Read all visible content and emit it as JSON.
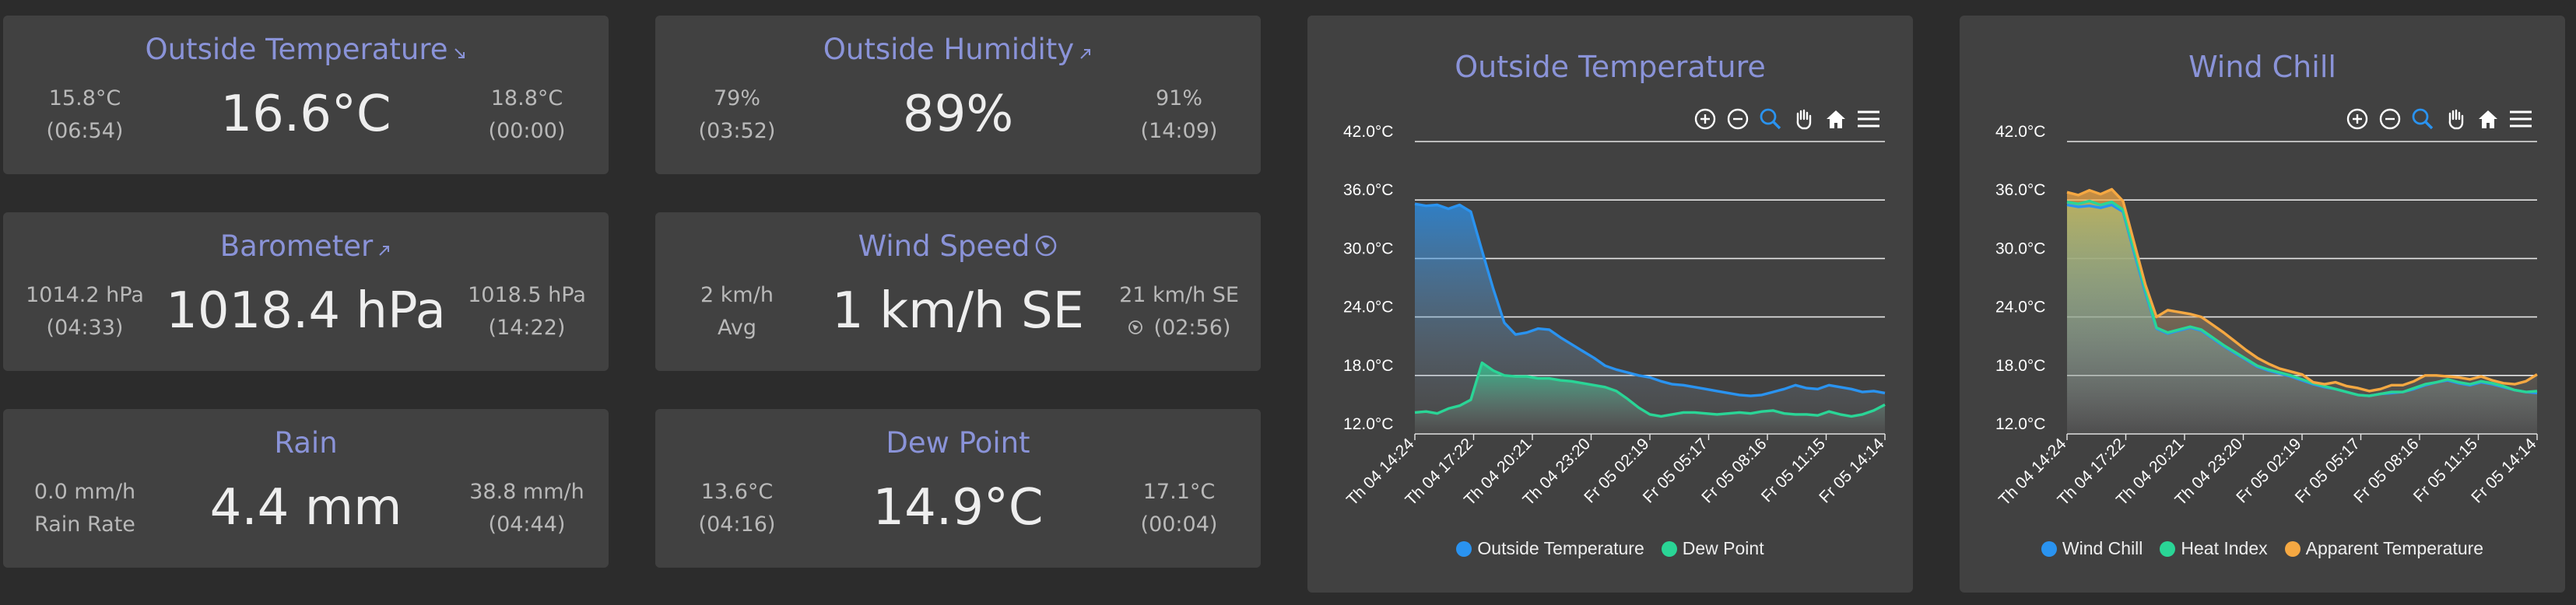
{
  "colors": {
    "title": "#8a93d8",
    "tile_bg": "#414141",
    "page_bg": "#2c2c2c",
    "blue": "#2a93f0",
    "green": "#2ad596",
    "orange": "#f5a842"
  },
  "tiles": {
    "outside_temperature": {
      "title": "Outside Temperature",
      "trend_icon": "trend-down-arrow-icon",
      "value": "16.6°C",
      "left_top": "15.8°C",
      "left_bottom": "(06:54)",
      "right_top": "18.8°C",
      "right_bottom": "(00:00)"
    },
    "outside_humidity": {
      "title": "Outside Humidity",
      "trend_icon": "trend-up-arrow-icon",
      "value": "89%",
      "left_top": "79%",
      "left_bottom": "(03:52)",
      "right_top": "91%",
      "right_bottom": "(14:09)"
    },
    "barometer": {
      "title": "Barometer",
      "trend_icon": "trend-up-arrow-icon",
      "value": "1018.4 hPa",
      "left_top": "1014.2 hPa",
      "left_bottom": "(04:33)",
      "right_top": "1018.5 hPa",
      "right_bottom": "(14:22)"
    },
    "wind_speed": {
      "title": "Wind Speed",
      "trend_icon": "wind-direction-compass-icon",
      "value": "1 km/h SE",
      "left_top": "2 km/h",
      "left_bottom": "Avg",
      "right_top": "21 km/h SE",
      "right_bottom": "(02:56)",
      "right_bottom_icon": "wind-direction-small-icon"
    },
    "rain": {
      "title": "Rain",
      "value": "4.4 mm",
      "left_top": "0.0 mm/h",
      "left_bottom": "Rain Rate",
      "right_top": "38.8 mm/h",
      "right_bottom": "(04:44)"
    },
    "dew_point": {
      "title": "Dew Point",
      "value": "14.9°C",
      "left_top": "13.6°C",
      "left_bottom": "(04:16)",
      "right_top": "17.1°C",
      "right_bottom": "(00:04)"
    }
  },
  "toolbar_icons": [
    "zoom-in-icon",
    "zoom-out-icon",
    "zoom-select-icon",
    "pan-hand-icon",
    "home-reset-icon",
    "menu-icon"
  ],
  "chart_data": [
    {
      "type": "area",
      "title": "Outside Temperature",
      "yticks": [
        "42.0°C",
        "36.0°C",
        "30.0°C",
        "24.0°C",
        "18.0°C",
        "12.0°C"
      ],
      "ylim": [
        12,
        42
      ],
      "ytick_values": [
        42,
        36,
        30,
        24,
        18,
        12
      ],
      "grid": true,
      "legend_position": "bottom",
      "xticks": [
        "Th 04 14:24",
        "Th 04 17:22",
        "Th 04 20:21",
        "Th 04 23:20",
        "Fr 05 02:19",
        "Fr 05 05:17",
        "Fr 05 08:16",
        "Fr 05 11:15",
        "Fr 05 14:14"
      ],
      "series": [
        {
          "name": "Outside Temperature",
          "color": "#2a93f0",
          "values": [
            35.6,
            35.4,
            35.5,
            35.1,
            35.5,
            34.8,
            30.8,
            26.9,
            23.4,
            22.2,
            22.4,
            22.8,
            22.7,
            21.9,
            21.2,
            20.5,
            19.8,
            19.0,
            18.6,
            18.3,
            18.0,
            17.8,
            17.4,
            17.1,
            17.0,
            16.8,
            16.6,
            16.4,
            16.2,
            16.0,
            15.9,
            16.0,
            16.3,
            16.6,
            17.0,
            16.7,
            16.6,
            17.0,
            16.8,
            16.6,
            16.3,
            16.4,
            16.2
          ]
        },
        {
          "name": "Dew Point",
          "color": "#2ad596",
          "values": [
            14.2,
            14.3,
            14.1,
            14.6,
            14.9,
            15.5,
            19.3,
            18.5,
            18.0,
            17.9,
            17.9,
            17.7,
            17.7,
            17.5,
            17.4,
            17.2,
            17.0,
            16.8,
            16.4,
            15.6,
            14.7,
            14.0,
            13.8,
            14.0,
            14.2,
            14.2,
            14.1,
            14.0,
            14.1,
            14.2,
            14.1,
            14.3,
            14.4,
            14.1,
            14.0,
            14.0,
            13.9,
            14.3,
            14.0,
            13.8,
            14.0,
            14.4,
            15.0
          ]
        }
      ]
    },
    {
      "type": "area",
      "title": "Wind Chill",
      "yticks": [
        "42.0°C",
        "36.0°C",
        "30.0°C",
        "24.0°C",
        "18.0°C",
        "12.0°C"
      ],
      "ylim": [
        12,
        42
      ],
      "ytick_values": [
        42,
        36,
        30,
        24,
        18,
        12
      ],
      "grid": true,
      "legend_position": "bottom",
      "xticks": [
        "Th 04 14:24",
        "Th 04 17:22",
        "Th 04 20:21",
        "Th 04 23:20",
        "Fr 05 02:19",
        "Fr 05 05:17",
        "Fr 05 08:16",
        "Fr 05 11:15",
        "Fr 05 14:14"
      ],
      "series": [
        {
          "name": "Wind Chill",
          "color": "#2a93f0",
          "values": [
            35.5,
            35.3,
            35.4,
            35.2,
            35.5,
            34.8,
            30.6,
            26.5,
            22.8,
            22.3,
            22.6,
            22.9,
            22.6,
            21.8,
            21.0,
            20.3,
            19.6,
            18.9,
            18.5,
            18.2,
            17.9,
            17.5,
            17.1,
            16.8,
            16.6,
            16.3,
            16.0,
            15.9,
            16.1,
            16.2,
            16.3,
            16.6,
            17.0,
            17.3,
            17.5,
            17.2,
            17.0,
            17.3,
            17.1,
            16.8,
            16.5,
            16.3,
            16.2
          ]
        },
        {
          "name": "Heat Index",
          "color": "#2ad596",
          "values": [
            35.8,
            35.6,
            35.9,
            35.5,
            35.8,
            35.0,
            30.9,
            26.8,
            22.9,
            22.4,
            22.7,
            23.0,
            22.7,
            21.9,
            21.1,
            20.4,
            19.7,
            19.0,
            18.6,
            18.3,
            18.0,
            17.6,
            17.2,
            16.9,
            16.6,
            16.3,
            16.0,
            15.9,
            16.1,
            16.3,
            16.3,
            16.7,
            17.1,
            17.3,
            17.6,
            17.3,
            17.1,
            17.4,
            17.2,
            16.9,
            16.5,
            16.3,
            16.4
          ]
        },
        {
          "name": "Apparent Temperature",
          "color": "#f5a842",
          "values": [
            36.8,
            36.5,
            37.0,
            36.6,
            37.1,
            35.9,
            31.6,
            27.3,
            24.0,
            24.7,
            24.5,
            24.3,
            24.0,
            23.2,
            22.4,
            21.5,
            20.6,
            19.8,
            19.2,
            18.7,
            18.4,
            18.1,
            17.3,
            17.1,
            17.3,
            16.9,
            16.7,
            16.4,
            16.6,
            17.0,
            17.0,
            17.4,
            18.0,
            18.0,
            17.9,
            17.8,
            17.6,
            17.9,
            17.5,
            17.2,
            17.1,
            17.4,
            18.1
          ]
        }
      ]
    }
  ]
}
